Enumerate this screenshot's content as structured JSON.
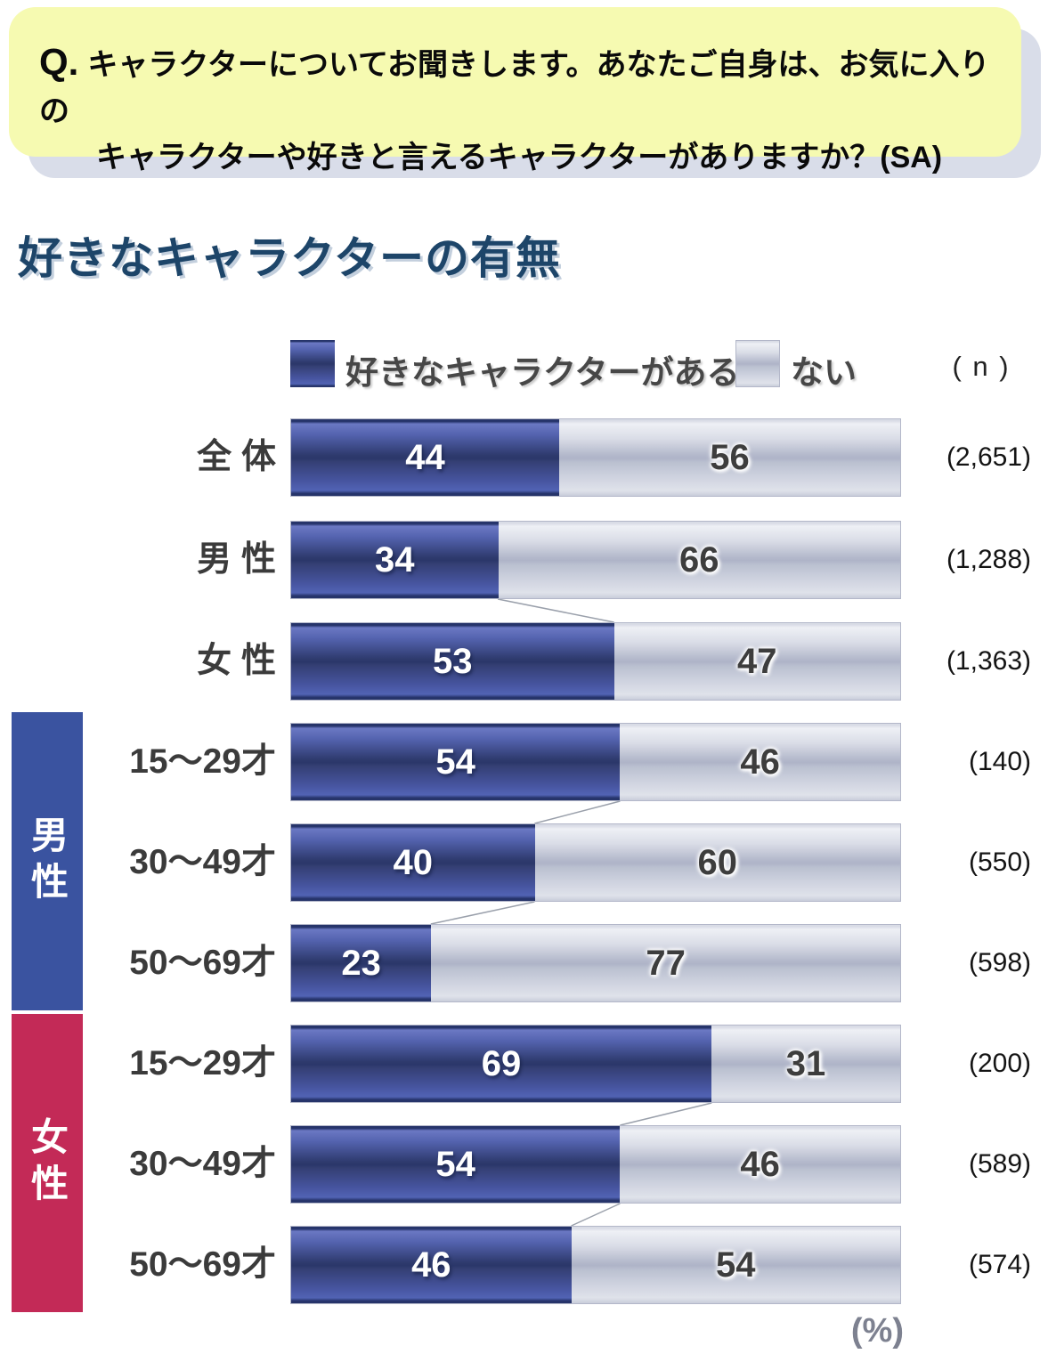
{
  "question": {
    "prefix": "Q.",
    "line1": "キャラクターについてお聞きします。あなたご自身は、お気に入りの",
    "line2": "キャラクターや好きと言えるキャラクターがありますか？(SA)"
  },
  "title": "好きなキャラクターの有無",
  "legend": {
    "series1_label": "好きなキャラクターがある",
    "series2_label": "ない",
    "n_header": "( n )"
  },
  "unit_label": "(%)",
  "colors": {
    "question_box_bg": "#f6fab1",
    "question_box_shadow": "#d9dde9",
    "title_color": "#1d4569",
    "bar_blue": "#3e509f",
    "bar_gray": "#c6cad9",
    "male_band": "#3a53a0",
    "female_band": "#c32a57",
    "connector_line": "#9aa0ab"
  },
  "chart_data": {
    "type": "bar",
    "orientation": "horizontal",
    "stacked": true,
    "title": "好きなキャラクターの有無",
    "xlim": [
      0,
      100
    ],
    "unit": "%",
    "categories": [
      "全 体",
      "男 性",
      "女 性",
      "15〜29才",
      "30〜49才",
      "50〜69才",
      "15〜29才",
      "30〜49才",
      "50〜69才"
    ],
    "series": [
      {
        "name": "好きなキャラクターがある",
        "values": [
          44,
          34,
          53,
          54,
          40,
          23,
          69,
          54,
          46
        ]
      },
      {
        "name": "ない",
        "values": [
          56,
          66,
          47,
          46,
          60,
          77,
          31,
          46,
          54
        ]
      }
    ],
    "n_values": [
      "(2,651)",
      "(1,288)",
      "(1,363)",
      "(140)",
      "(550)",
      "(598)",
      "(200)",
      "(589)",
      "(574)"
    ],
    "groups": [
      {
        "label": "男性",
        "rows": [
          3,
          4,
          5
        ],
        "color": "#3a53a0"
      },
      {
        "label": "女性",
        "rows": [
          6,
          7,
          8
        ],
        "color": "#c32a57"
      }
    ],
    "connectors": [
      [
        1,
        2
      ],
      [
        3,
        4
      ],
      [
        4,
        5
      ],
      [
        6,
        7
      ],
      [
        7,
        8
      ]
    ],
    "legend_position": "top"
  }
}
